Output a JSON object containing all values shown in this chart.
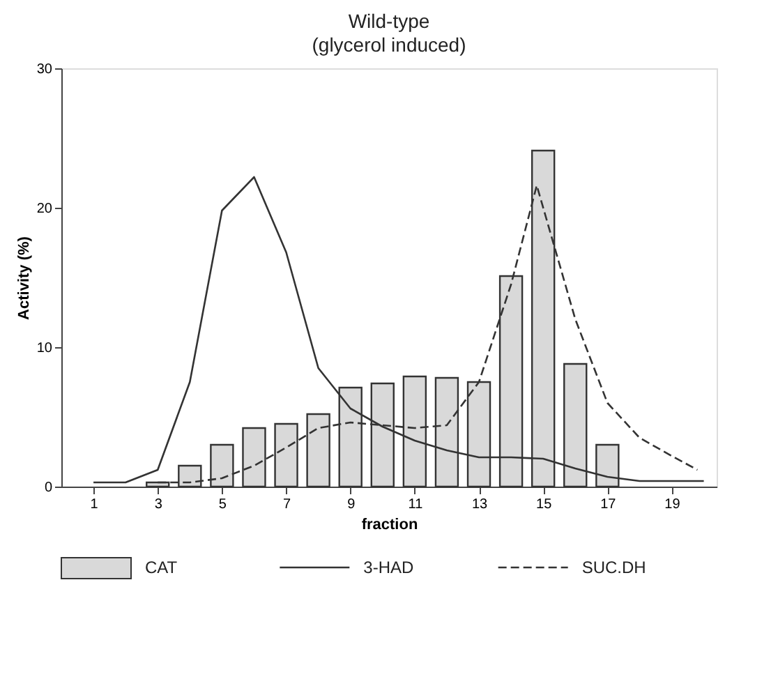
{
  "chart_data": {
    "type": "bar",
    "title": "Wild-type",
    "subtitle": "(glycerol induced)",
    "xlabel": "fraction",
    "ylabel": "Activity (%)",
    "xlim": [
      0,
      20.4
    ],
    "xticks": [
      1,
      3,
      5,
      7,
      9,
      11,
      13,
      15,
      17,
      19
    ],
    "ylim": [
      0,
      30
    ],
    "yticks": [
      0,
      10,
      20,
      30
    ],
    "grid": false,
    "legend": "bottom",
    "series": [
      {
        "name": "CAT",
        "color": "#d9d9d9",
        "x": [
          3,
          4,
          5,
          6,
          7,
          8,
          9,
          10,
          11,
          12,
          13,
          14,
          15,
          16,
          17
        ],
        "values": [
          0.3,
          1.5,
          3.0,
          4.2,
          4.5,
          5.2,
          7.1,
          7.4,
          7.9,
          7.8,
          7.5,
          15.1,
          24.1,
          8.8,
          3.0
        ]
      },
      {
        "name": "3-HAD",
        "type": "line",
        "line_style": "solid",
        "color": "#333333",
        "x": [
          1,
          2,
          3,
          4,
          5,
          6,
          7,
          8,
          9,
          10,
          11,
          12,
          13,
          14,
          15,
          16,
          17,
          18,
          19,
          20
        ],
        "values": [
          0.3,
          0.3,
          1.2,
          7.5,
          19.8,
          22.2,
          16.8,
          8.5,
          5.6,
          4.3,
          3.3,
          2.6,
          2.1,
          2.1,
          2.0,
          1.3,
          0.7,
          0.4,
          0.4,
          0.4
        ]
      },
      {
        "name": "SUC.DH",
        "type": "line",
        "line_style": "dashed",
        "color": "#333333",
        "x": [
          3,
          4,
          5,
          6,
          7,
          8,
          9,
          10,
          11,
          12,
          13,
          14,
          14.8,
          16,
          17,
          18,
          19,
          19.8
        ],
        "values": [
          0.3,
          0.3,
          0.6,
          1.5,
          2.8,
          4.2,
          4.6,
          4.4,
          4.2,
          4.4,
          7.5,
          14.5,
          21.6,
          12.0,
          6.0,
          3.5,
          2.2,
          1.2
        ]
      }
    ]
  }
}
